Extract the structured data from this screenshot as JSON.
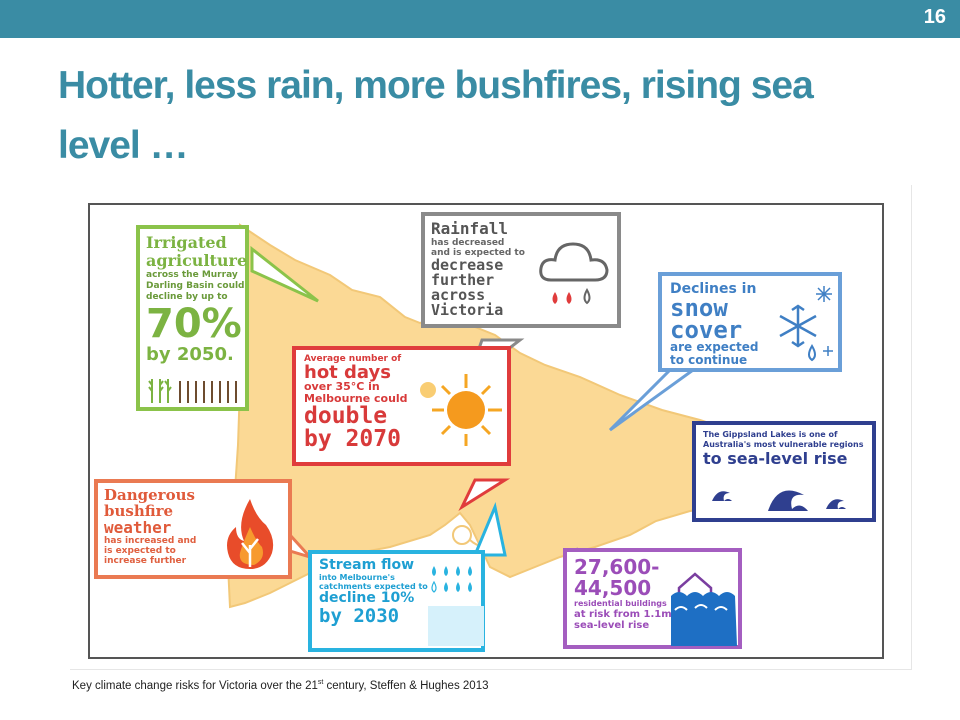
{
  "slide": {
    "number": "16",
    "title_line1": "Hotter, less rain, more bushfires, rising sea",
    "title_line2": "level …",
    "accent_color": "#3a8ca4"
  },
  "infographic": {
    "irrigation": {
      "line1": "Irrigated",
      "line2": "agriculture",
      "line3": "across the Murray",
      "line4": "Darling Basin could",
      "line5": "decline by up to",
      "value": "70%",
      "line6": "by 2050.",
      "color": "#8bc34a",
      "icon": "wheat-icon"
    },
    "rainfall": {
      "line1": "Rainfall",
      "line2": "has decreased",
      "line3": "and is expected to",
      "line4": "decrease",
      "line5": "further",
      "line6": "across",
      "line7": "Victoria",
      "color": "#8a8a8a",
      "icon": "rain-cloud-icon"
    },
    "snow": {
      "line1": "Declines in",
      "line2": "snow",
      "line3": "cover",
      "line4": "are expected",
      "line5": "to continue",
      "color": "#6a9fd8",
      "icon": "snowflake-icon"
    },
    "hot_days": {
      "line1": "Average number of",
      "line2": "hot days",
      "line3": "over 35°C in",
      "line4": "Melbourne could",
      "line5": "double",
      "line6": "by 2070",
      "color": "#e03c3c",
      "icon": "sun-icon"
    },
    "gippsland": {
      "line1": "The Gippsland Lakes is one of",
      "line2": "Australia's most vulnerable regions",
      "line3": "to sea-level rise",
      "color": "#2f3f8f",
      "icon": "wave-icon"
    },
    "bushfire": {
      "line1": "Dangerous",
      "line2": "bushfire",
      "line3": "weather",
      "line4": "has increased and",
      "line5": "is expected to",
      "line6": "increase further",
      "color": "#ea7a52",
      "icon": "flame-icon"
    },
    "stream": {
      "line1": "Stream flow",
      "line2": "into Melbourne's",
      "line3": "catchments expected to",
      "line4": "decline 10%",
      "line5": "by 2030",
      "color": "#29b3e0",
      "icon": "water-drops-icon"
    },
    "buildings": {
      "line1": "27,600-",
      "line2": "44,500",
      "line3": "residential buildings",
      "line4": "at risk from 1.1m",
      "line5": "sea-level rise",
      "color": "#a45ec0",
      "icon": "flooded-house-icon"
    }
  },
  "caption": {
    "text_before": "Key climate change risks for Victoria over the 21",
    "superscript": "st",
    "text_after": " century, Steffen & Hughes  2013"
  }
}
